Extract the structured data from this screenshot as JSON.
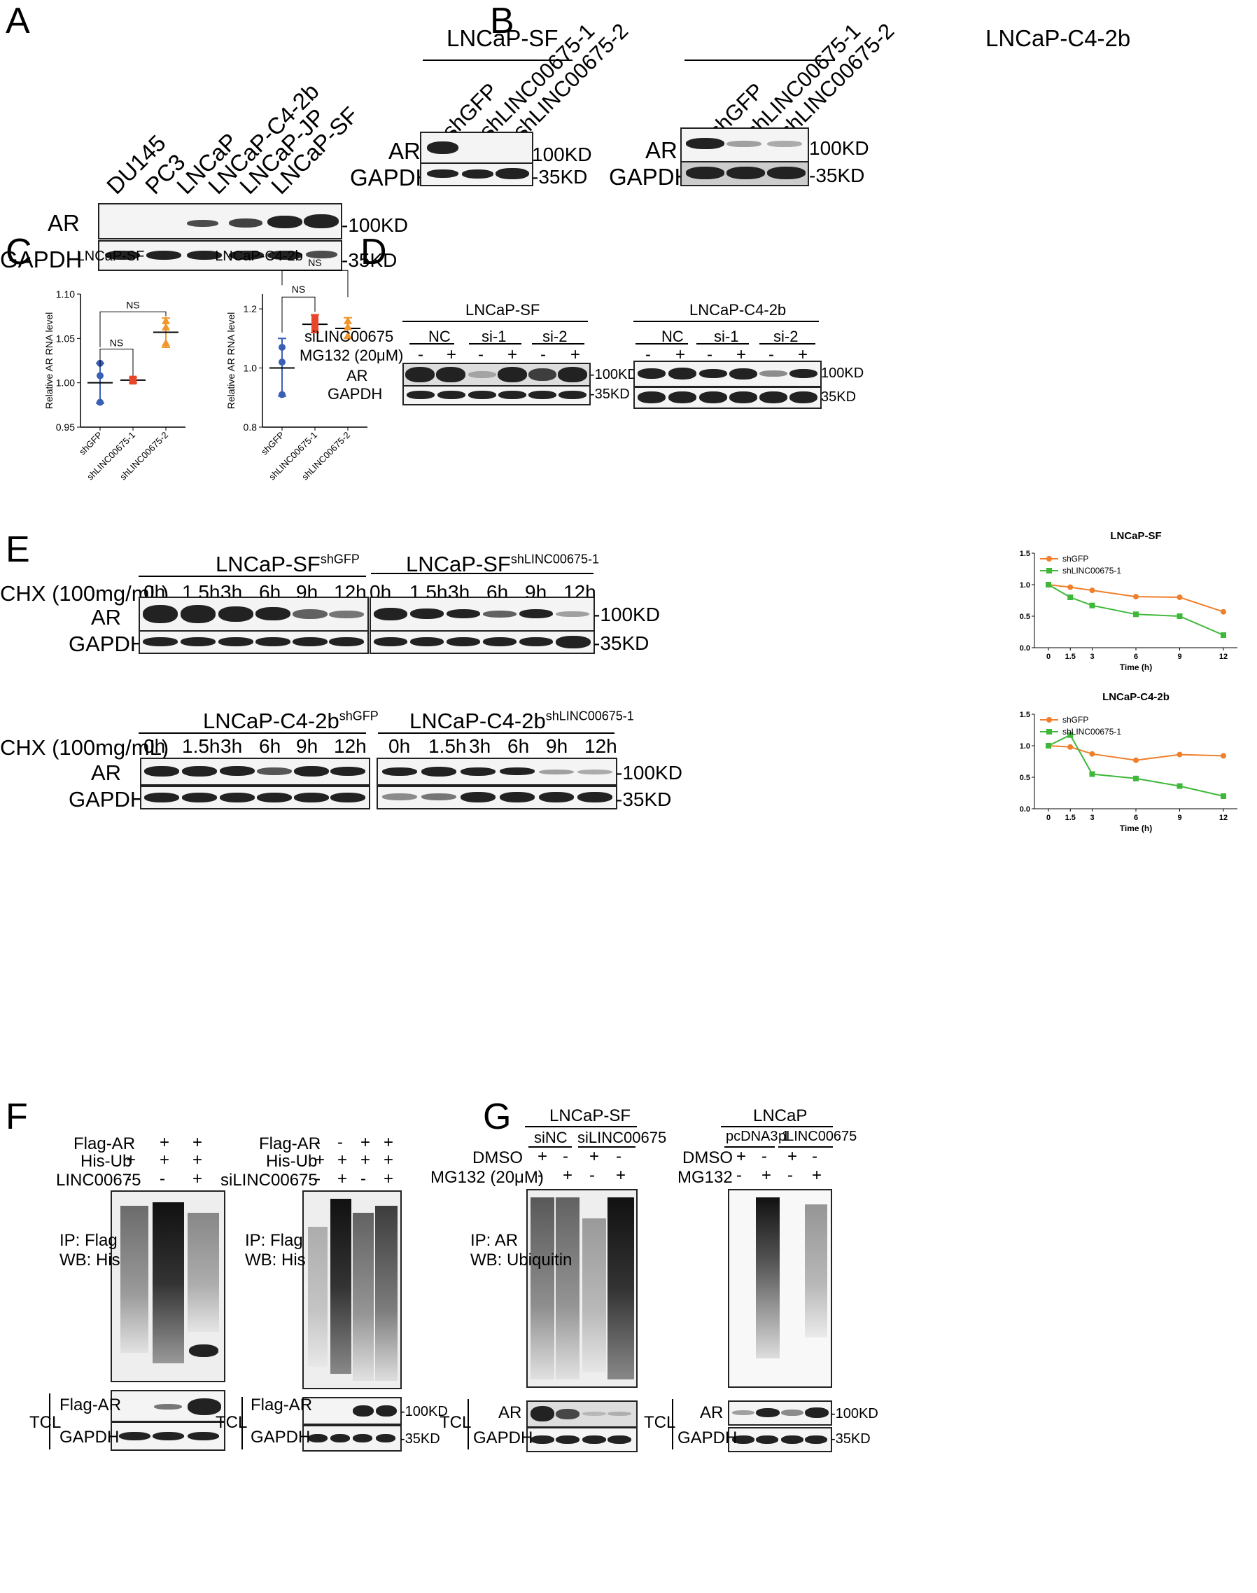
{
  "panels": {
    "A": "A",
    "B": "B",
    "C": "C",
    "D": "D",
    "E": "E",
    "F": "F",
    "G": "G"
  },
  "panelA": {
    "lanes": [
      "DU145",
      "PC3",
      "LNCaP",
      "LNCaP-C4-2b",
      "LNCaP-JP",
      "LNCaP-SF"
    ],
    "rows": [
      "AR",
      "GAPDH"
    ],
    "markers": [
      "-100KD",
      "-35KD"
    ]
  },
  "panelB": {
    "groups": [
      "LNCaP-SF",
      "LNCaP-C4-2b"
    ],
    "lanes": [
      "shGFP",
      "shLINC00675-1",
      "shLINC00675-2"
    ],
    "rows": [
      "AR",
      "GAPDH"
    ],
    "markers": [
      "100KD",
      "-35KD"
    ]
  },
  "panelD": {
    "groups": [
      "LNCaP-SF",
      "LNCaP-C4-2b"
    ],
    "row_labels": [
      "siLINC00675",
      "MG132 (20μM)"
    ],
    "si": [
      "NC",
      "si-1",
      "si-2"
    ],
    "mg": [
      "-",
      "+",
      "-",
      "+",
      "-",
      "+"
    ],
    "rows": [
      "AR",
      "GAPDH"
    ],
    "markers": [
      "-100KD",
      "-35KD"
    ],
    "markers2": [
      "100KD",
      "35KD"
    ]
  },
  "panelE": {
    "cell1": "LNCaP-SF",
    "cell2": "LNCaP-C4-2b",
    "sup1": "shGFP",
    "sup2": "shLINC00675-1",
    "chx": "CHX (100mg/mL)",
    "times": [
      "0h",
      "1.5h",
      "3h",
      "6h",
      "9h",
      "12h"
    ],
    "rows": [
      "AR",
      "GAPDH"
    ],
    "markers": [
      "-100KD",
      "-35KD"
    ]
  },
  "panelF": {
    "left": {
      "rows": [
        "Flag-AR",
        "His-Ub",
        "LINC00675"
      ],
      "signs": [
        [
          "-",
          "+",
          "+"
        ],
        [
          "+",
          "+",
          "+"
        ],
        [
          "-",
          "-",
          "+"
        ]
      ],
      "ip": "IP: Flag",
      "wb": "WB: His"
    },
    "right": {
      "rows": [
        "Flag-AR",
        "His-Ub",
        "siLINC00675"
      ],
      "signs": [
        [
          "-",
          "-",
          "+",
          "+"
        ],
        [
          "+",
          "+",
          "+",
          "+"
        ],
        [
          "-",
          "+",
          "-",
          "+"
        ]
      ],
      "ip": "IP: Flag",
      "wb": "WB: His"
    },
    "tcl": "TCL",
    "tcl_rows": [
      "Flag-AR",
      "GAPDH"
    ],
    "markers": [
      "-100KD",
      "-35KD"
    ]
  },
  "panelG": {
    "left": {
      "group": "LNCaP-SF",
      "sub": [
        "siNC",
        "siLINC00675"
      ],
      "rows": [
        "DMSO",
        "MG132 (20μM)"
      ],
      "signs": [
        [
          "+",
          "-",
          "+",
          "-"
        ],
        [
          "-",
          "+",
          "-",
          "+"
        ]
      ],
      "ip": "IP: AR",
      "wb": "WB: Ubiquitin"
    },
    "right": {
      "group": "LNCaP",
      "sub": [
        "pcDNA3.1",
        "pLINC00675"
      ],
      "rows": [
        "DMSO",
        "MG132"
      ],
      "signs": [
        [
          "+",
          "-",
          "+",
          "-"
        ],
        [
          "-",
          "+",
          "-",
          "+"
        ]
      ]
    },
    "tcl": "TCL",
    "tcl_rows": [
      "AR",
      "GAPDH"
    ],
    "markers": [
      "-100KD",
      "-35KD"
    ]
  },
  "chart_data": [
    {
      "type": "scatter",
      "title": "LNCaP-SF",
      "ylabel": "Relative AR RNA level",
      "categories": [
        "shGFP",
        "shLINC00675-1",
        "shLINC00675-2"
      ],
      "ylim": [
        0.95,
        1.1
      ],
      "yticks": [
        "0.95",
        "1.00",
        "1.05",
        "1.10"
      ],
      "series": [
        {
          "values": [
            [
              1.022,
              1.008,
              0.978
            ],
            [
              1.004,
              1.002,
              1.003
            ],
            [
              1.07,
              1.063,
              1.045
            ]
          ],
          "mean": [
            1.0,
            1.003,
            1.057
          ],
          "sd_low": [
            0.977,
            1.0,
            1.04
          ],
          "sd_high": [
            1.022,
            1.006,
            1.073
          ]
        }
      ],
      "annotations": [
        "NS",
        "NS"
      ],
      "colors": [
        "#3a5fb5",
        "#e8452b",
        "#f0962b"
      ]
    },
    {
      "type": "scatter",
      "title": "LNCaP-C4-2b",
      "ylabel": "Relative AR RNA level",
      "categories": [
        "shGFP",
        "shLINC00675-1",
        "shLINC00675-2"
      ],
      "ylim": [
        0.8,
        1.25
      ],
      "yticks": [
        "0.8",
        "1.0",
        "1.2"
      ],
      "series": [
        {
          "values": [
            [
              1.07,
              1.02,
              0.91
            ],
            [
              1.17,
              1.15,
              1.13
            ],
            [
              1.16,
              1.14,
              1.11
            ]
          ],
          "mean": [
            1.0,
            1.148,
            1.134
          ],
          "sd_low": [
            0.905,
            1.12,
            1.1
          ],
          "sd_high": [
            1.1,
            1.18,
            1.17
          ]
        }
      ],
      "annotations": [
        "NS",
        "NS"
      ],
      "colors": [
        "#3a5fb5",
        "#e8452b",
        "#f0962b"
      ]
    },
    {
      "type": "line",
      "title": "LNCaP-SF",
      "xlabel": "Time (h)",
      "x": [
        "0",
        "1.5",
        "3",
        "6",
        "9",
        "12"
      ],
      "ylim": [
        0,
        1.5
      ],
      "yticks": [
        "0.0",
        "0.5",
        "1.0",
        "1.5"
      ],
      "series": [
        {
          "name": "shGFP",
          "color": "#f07f2b",
          "values": [
            1.0,
            0.96,
            0.91,
            0.81,
            0.8,
            0.57
          ]
        },
        {
          "name": "shLINC00675-1",
          "color": "#3fb83a",
          "values": [
            1.0,
            0.8,
            0.67,
            0.53,
            0.5,
            0.2
          ]
        }
      ],
      "legend": "top-left"
    },
    {
      "type": "line",
      "title": "LNCaP-C4-2b",
      "xlabel": "Time (h)",
      "x": [
        "0",
        "1.5",
        "3",
        "6",
        "9",
        "12"
      ],
      "ylim": [
        0,
        1.5
      ],
      "yticks": [
        "0.0",
        "0.5",
        "1.0",
        "1.5"
      ],
      "series": [
        {
          "name": "shGFP",
          "color": "#f07f2b",
          "values": [
            1.0,
            0.98,
            0.87,
            0.77,
            0.86,
            0.84
          ]
        },
        {
          "name": "shLINC00675-1",
          "color": "#3fb83a",
          "values": [
            1.0,
            1.17,
            0.55,
            0.48,
            0.36,
            0.2
          ]
        }
      ],
      "legend": "top-left"
    }
  ]
}
